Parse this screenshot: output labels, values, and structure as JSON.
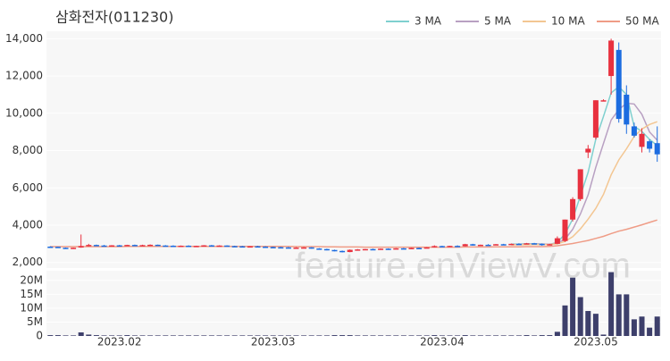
{
  "chart_data": {
    "type": "candlestick",
    "title": "삼화전자(011230)",
    "watermark": "feature.enViewV.com",
    "categories": [
      null,
      null,
      null,
      null,
      null,
      null,
      null,
      null,
      null,
      "2023.02",
      null,
      null,
      null,
      null,
      null,
      null,
      null,
      null,
      null,
      null,
      null,
      null,
      null,
      null,
      null,
      null,
      null,
      null,
      null,
      "2023.03",
      null,
      null,
      null,
      null,
      null,
      null,
      null,
      null,
      null,
      null,
      null,
      null,
      null,
      null,
      null,
      null,
      null,
      null,
      null,
      null,
      null,
      "2023.04",
      null,
      null,
      null,
      null,
      null,
      null,
      null,
      null,
      null,
      null,
      null,
      null,
      null,
      null,
      null,
      null,
      null,
      null,
      null,
      "2023.05",
      null,
      null,
      null,
      null,
      null,
      null,
      null,
      null
    ],
    "open": [
      2850,
      2840,
      2790,
      2760,
      2800,
      2880,
      2940,
      2910,
      2900,
      2920,
      2890,
      2940,
      2910,
      2930,
      2950,
      2910,
      2900,
      2880,
      2900,
      2880,
      2890,
      2920,
      2900,
      2910,
      2880,
      2870,
      2860,
      2870,
      2850,
      2830,
      2820,
      2810,
      2790,
      2800,
      2810,
      2750,
      2720,
      2670,
      2620,
      2560,
      2680,
      2700,
      2720,
      2700,
      2740,
      2730,
      2760,
      2750,
      2780,
      2770,
      2810,
      2880,
      2850,
      2890,
      2870,
      2980,
      2920,
      2950,
      2940,
      2980,
      2960,
      3000,
      2980,
      3030,
      3000,
      2940,
      3000,
      3150,
      4300,
      5400,
      7900,
      8700,
      10700,
      12000,
      13400,
      11000,
      9300,
      8200,
      8500,
      8400
    ],
    "high": [
      2870,
      2850,
      2800,
      2800,
      3500,
      3000,
      2960,
      2940,
      2930,
      2940,
      2950,
      2960,
      2950,
      2970,
      2960,
      2930,
      2920,
      2910,
      2920,
      2900,
      2930,
      2940,
      2920,
      2920,
      2900,
      2890,
      2880,
      2890,
      2870,
      2850,
      2840,
      2830,
      2820,
      2830,
      2820,
      2770,
      2740,
      2690,
      2640,
      2700,
      2720,
      2730,
      2740,
      2750,
      2760,
      2770,
      2780,
      2790,
      2800,
      2820,
      2920,
      2900,
      2900,
      2920,
      3000,
      3000,
      2960,
      2980,
      2990,
      3000,
      3020,
      3030,
      3050,
      3050,
      3020,
      3000,
      3400,
      4300,
      5500,
      7000,
      8300,
      10700,
      10750,
      14000,
      13800,
      11500,
      9500,
      9200,
      8600,
      9300
    ],
    "low": [
      2830,
      2780,
      2750,
      2740,
      2790,
      2860,
      2900,
      2880,
      2880,
      2880,
      2880,
      2900,
      2900,
      2910,
      2900,
      2880,
      2870,
      2860,
      2870,
      2860,
      2870,
      2890,
      2880,
      2870,
      2860,
      2840,
      2840,
      2840,
      2820,
      2800,
      2800,
      2780,
      2770,
      2780,
      2740,
      2700,
      2650,
      2600,
      2540,
      2550,
      2660,
      2680,
      2690,
      2690,
      2710,
      2720,
      2740,
      2740,
      2760,
      2760,
      2800,
      2840,
      2840,
      2860,
      2860,
      2900,
      2900,
      2920,
      2930,
      2940,
      2950,
      2960,
      2970,
      2980,
      2900,
      2920,
      2980,
      3100,
      4200,
      5300,
      7600,
      8600,
      10650,
      11000,
      9500,
      8900,
      8700,
      7900,
      7900,
      7400
    ],
    "close": [
      2840,
      2790,
      2760,
      2790,
      2880,
      2940,
      2910,
      2900,
      2920,
      2890,
      2940,
      2910,
      2930,
      2950,
      2910,
      2900,
      2880,
      2900,
      2880,
      2890,
      2920,
      2900,
      2910,
      2880,
      2870,
      2860,
      2870,
      2850,
      2830,
      2820,
      2810,
      2790,
      2800,
      2810,
      2750,
      2720,
      2670,
      2620,
      2560,
      2680,
      2700,
      2720,
      2700,
      2740,
      2730,
      2760,
      2750,
      2780,
      2770,
      2810,
      2880,
      2850,
      2890,
      2870,
      2980,
      2920,
      2950,
      2940,
      2980,
      2960,
      3000,
      2980,
      3030,
      3000,
      2940,
      2980,
      3300,
      4300,
      5400,
      7000,
      8100,
      10700,
      10700,
      13900,
      9700,
      9400,
      8800,
      8900,
      8100,
      7800
    ],
    "volume": [
      300000,
      300000,
      200000,
      200000,
      1300000,
      500000,
      300000,
      200000,
      200000,
      200000,
      300000,
      200000,
      200000,
      200000,
      200000,
      200000,
      200000,
      200000,
      200000,
      200000,
      200000,
      200000,
      200000,
      200000,
      200000,
      200000,
      200000,
      200000,
      200000,
      200000,
      200000,
      200000,
      200000,
      200000,
      200000,
      200000,
      200000,
      300000,
      300000,
      300000,
      200000,
      200000,
      200000,
      200000,
      200000,
      200000,
      200000,
      200000,
      200000,
      200000,
      300000,
      200000,
      200000,
      200000,
      300000,
      200000,
      200000,
      200000,
      200000,
      200000,
      200000,
      200000,
      300000,
      200000,
      300000,
      300000,
      1500000,
      11000000,
      21000000,
      14000000,
      9000000,
      8000000,
      500000,
      23000000,
      15000000,
      15000000,
      6000000,
      7000000,
      3000000,
      7000000
    ],
    "series": [
      {
        "name": "3 MA",
        "color": "#7fd0cf",
        "values": [
          null,
          null,
          null,
          null,
          null,
          null,
          null,
          null,
          null,
          null,
          null,
          null,
          null,
          null,
          null,
          null,
          null,
          null,
          null,
          null,
          null,
          null,
          null,
          null,
          null,
          null,
          null,
          null,
          null,
          null,
          null,
          null,
          null,
          null,
          null,
          null,
          null,
          null,
          null,
          null,
          null,
          null,
          null,
          null,
          null,
          null,
          null,
          null,
          null,
          null,
          null,
          null,
          null,
          null,
          null,
          null,
          null,
          null,
          null,
          null,
          2980,
          2990,
          3000,
          3000,
          2990,
          2970,
          3070,
          3530,
          4330,
          5570,
          6830,
          8600,
          9830,
          11100,
          11430,
          11000,
          9300,
          9030,
          8600,
          8270
        ]
      },
      {
        "name": "5 MA",
        "color": "#b8a0c2",
        "values": [
          null,
          null,
          null,
          null,
          null,
          null,
          null,
          null,
          null,
          null,
          null,
          null,
          null,
          null,
          null,
          null,
          null,
          null,
          null,
          null,
          null,
          null,
          null,
          null,
          null,
          null,
          null,
          null,
          null,
          null,
          null,
          null,
          null,
          null,
          null,
          null,
          null,
          null,
          null,
          null,
          null,
          null,
          null,
          null,
          null,
          null,
          null,
          null,
          null,
          null,
          null,
          null,
          null,
          null,
          null,
          null,
          null,
          null,
          null,
          null,
          2960,
          2970,
          2980,
          2990,
          2990,
          2980,
          3040,
          3250,
          3780,
          4600,
          5620,
          7100,
          8380,
          9640,
          10200,
          10540,
          10500,
          9950,
          9000,
          8560
        ]
      },
      {
        "name": "10 MA",
        "color": "#f3c692",
        "values": [
          null,
          null,
          null,
          null,
          null,
          null,
          null,
          null,
          null,
          null,
          null,
          null,
          null,
          null,
          null,
          null,
          null,
          null,
          null,
          null,
          null,
          null,
          null,
          null,
          null,
          null,
          null,
          null,
          null,
          null,
          null,
          null,
          null,
          null,
          null,
          null,
          null,
          null,
          null,
          null,
          null,
          null,
          null,
          null,
          null,
          null,
          null,
          null,
          null,
          null,
          null,
          null,
          null,
          null,
          null,
          null,
          null,
          null,
          null,
          null,
          2940,
          2950,
          2950,
          2960,
          2960,
          2970,
          3000,
          3130,
          3380,
          3800,
          4320,
          4900,
          5650,
          6700,
          7500,
          8100,
          8760,
          9150,
          9400,
          9550
        ]
      },
      {
        "name": "50 MA",
        "color": "#ef9c86",
        "values": [
          2850,
          2850,
          2850,
          2850,
          2850,
          2850,
          2850,
          2850,
          2850,
          2850,
          2860,
          2860,
          2860,
          2860,
          2860,
          2860,
          2860,
          2860,
          2860,
          2860,
          2860,
          2860,
          2860,
          2860,
          2860,
          2860,
          2860,
          2860,
          2860,
          2860,
          2860,
          2860,
          2850,
          2850,
          2850,
          2850,
          2840,
          2840,
          2830,
          2830,
          2830,
          2820,
          2820,
          2820,
          2820,
          2820,
          2820,
          2820,
          2820,
          2820,
          2820,
          2820,
          2820,
          2820,
          2830,
          2830,
          2830,
          2830,
          2840,
          2840,
          2840,
          2840,
          2850,
          2850,
          2850,
          2860,
          2900,
          2960,
          3020,
          3100,
          3180,
          3290,
          3400,
          3550,
          3680,
          3780,
          3900,
          4020,
          4150,
          4280
        ]
      }
    ],
    "up_color": "#e8313f",
    "down_color": "#1c6ce0",
    "volume_color": "#3d3f6b",
    "ylim": [
      1700,
      14400
    ],
    "yticks": [
      {
        "value": 2000,
        "label": "2,000"
      },
      {
        "value": 4000,
        "label": "4,000"
      },
      {
        "value": 6000,
        "label": "6,000"
      },
      {
        "value": 8000,
        "label": "8,000"
      },
      {
        "value": 10000,
        "label": "10,000"
      },
      {
        "value": 12000,
        "label": "12,000"
      },
      {
        "value": 14000,
        "label": "14,000"
      }
    ],
    "volume_ylim": [
      0,
      23500000
    ],
    "volume_yticks": [
      0,
      {
        "value": 5000000,
        "label": "5M"
      },
      {
        "value": 10000000,
        "label": "10M"
      },
      {
        "value": 15000000,
        "label": "15M"
      },
      {
        "value": 20000000,
        "label": "20M"
      }
    ],
    "grid": true,
    "legend": "top-right"
  }
}
